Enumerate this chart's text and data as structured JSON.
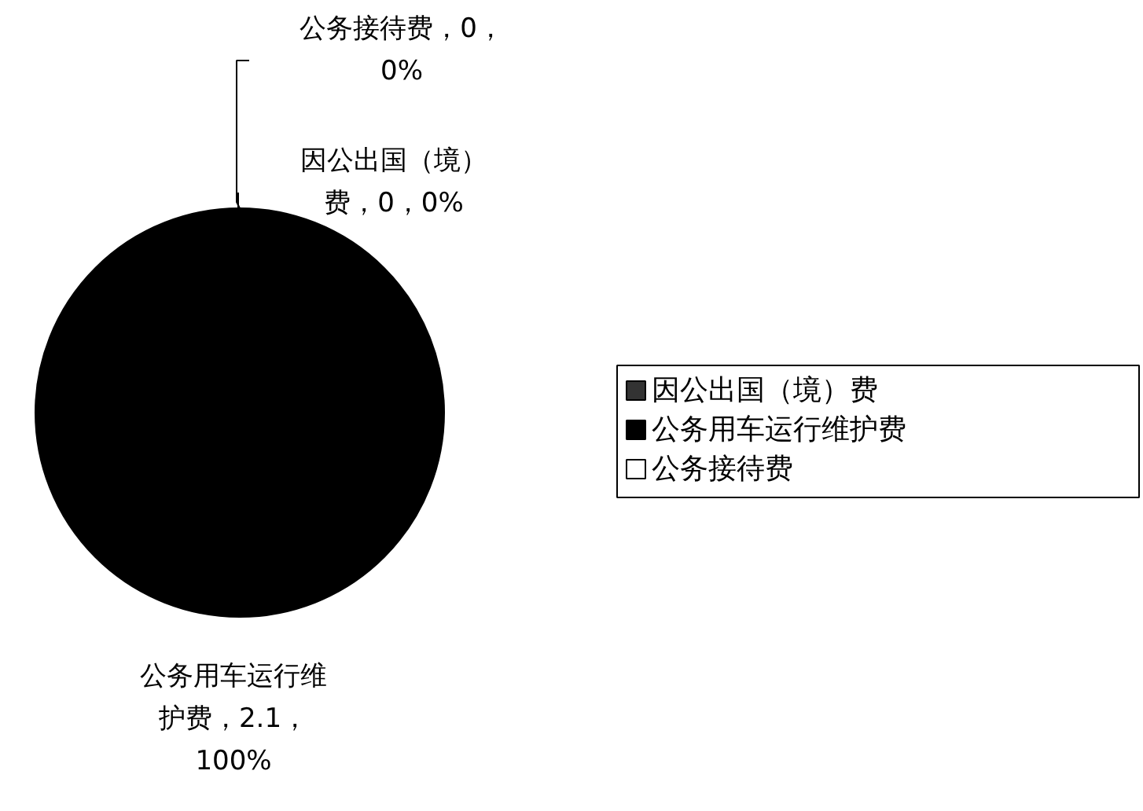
{
  "chart_data": {
    "type": "pie",
    "categories": [
      "因公出国（境）费",
      "公务用车运行维护费",
      "公务接待费"
    ],
    "values": [
      0,
      2.1,
      0
    ],
    "colors": [
      "#333333",
      "#000000",
      "#ffffff"
    ],
    "value_labels": [
      "因公出国（境）费，0，0%",
      "公务用车运行维护费，2.1，100%",
      "公务接待费，0，0%"
    ],
    "legend": "right"
  }
}
